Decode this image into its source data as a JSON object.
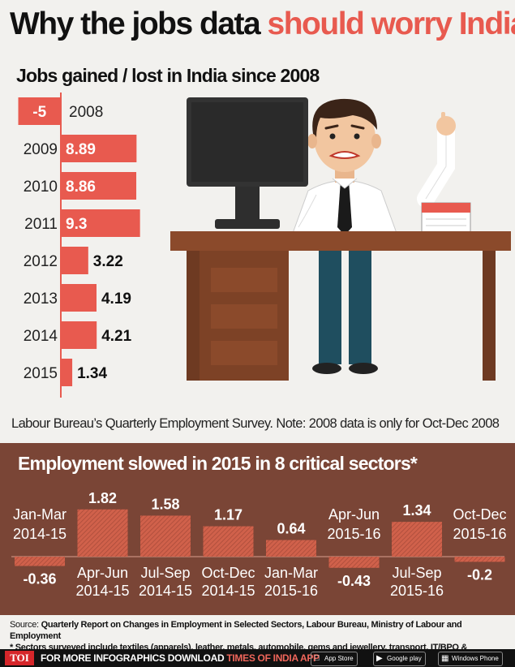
{
  "title": {
    "part1": "Why the jobs data ",
    "part2": "should worry India"
  },
  "top_chart_title": "Jobs gained / lost in India since 2008",
  "note": "Labour Bureau’s Quarterly Employment Survey.  Note: 2008 data is only for Oct-Dec 2008",
  "bottom_chart_title": "Employment slowed in 2015 in 8 critical sectors*",
  "source": {
    "label": "Source:",
    "text": "Quarterly Report on Changes in Employment in Selected Sectors, Labour Bureau, Ministry of Labour and Employment",
    "footnote": "* Sectors surveyed include textiles (apparels), leather, metals, automobile, gems and jewellery, transport, IT/BPO & handloom/power loom"
  },
  "footer": {
    "logo": "TOI",
    "text": "FOR MORE  INFOGRAPHICS DOWNLOAD ",
    "app": "TIMES OF INDIA APP",
    "stores": [
      "App Store",
      "Google play",
      "Windows Phone"
    ]
  },
  "colors": {
    "accent": "#e85a4f",
    "brown": "#7a4536",
    "hatch": "#c95e4a"
  },
  "chart_data": [
    {
      "type": "bar",
      "orientation": "horizontal",
      "categories": [
        "2008",
        "2009",
        "2010",
        "2011",
        "2012",
        "2013",
        "2014",
        "2015"
      ],
      "values": [
        -5,
        8.89,
        8.86,
        9.3,
        3.22,
        4.19,
        4.21,
        1.34
      ],
      "value_labels": [
        "-5",
        "8.89",
        "8.86",
        "9.3",
        "3.22",
        "4.19",
        "4.21",
        "1.34"
      ],
      "title": "Jobs gained / lost in India since 2008"
    },
    {
      "type": "bar",
      "categories": [
        [
          "Jan-Mar",
          "2014-15"
        ],
        [
          "Apr-Jun",
          "2014-15"
        ],
        [
          "Jul-Sep",
          "2014-15"
        ],
        [
          "Oct-Dec",
          "2014-15"
        ],
        [
          "Jan-Mar",
          "2015-16"
        ],
        [
          "Apr-Jun",
          "2015-16"
        ],
        [
          "Jul-Sep",
          "2015-16"
        ],
        [
          "Oct-Dec",
          "2015-16"
        ]
      ],
      "values": [
        -0.36,
        1.82,
        1.58,
        1.17,
        0.64,
        -0.43,
        1.34,
        -0.2
      ],
      "value_labels": [
        "-0.36",
        "1.82",
        "1.58",
        "1.17",
        "0.64",
        "-0.43",
        "1.34",
        "-0.2"
      ],
      "title": "Employment slowed in 2015 in 8 critical sectors*"
    }
  ]
}
